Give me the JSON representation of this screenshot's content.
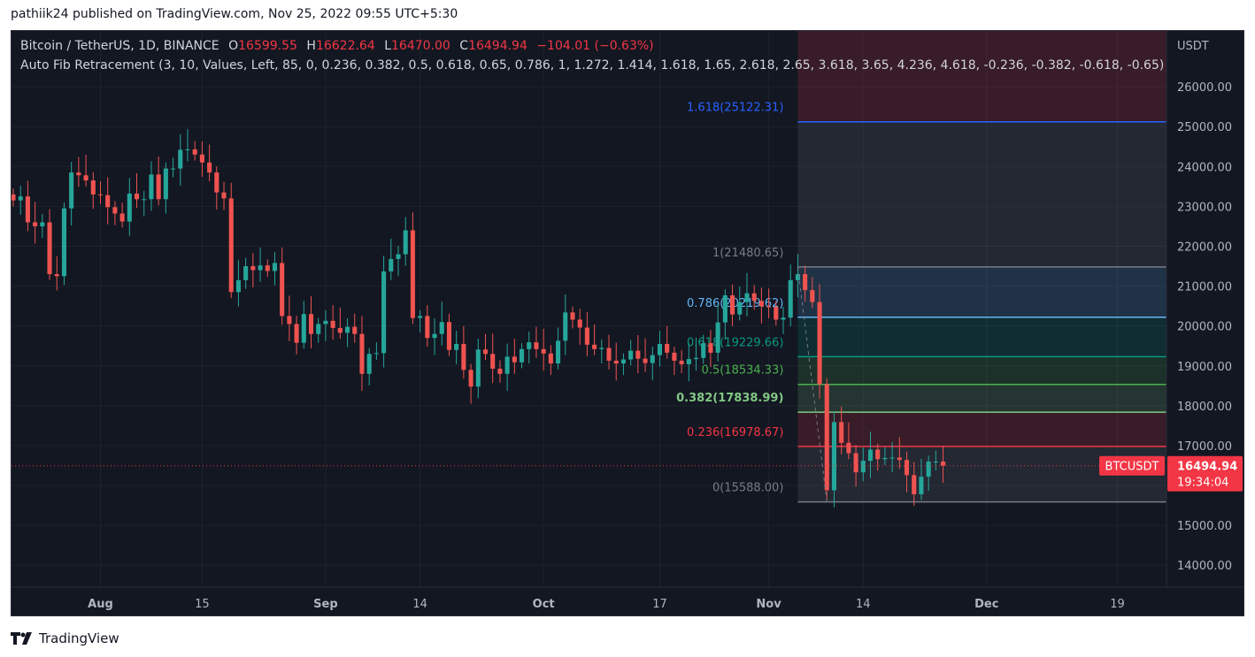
{
  "header": {
    "published_text": "pathiik24 published on TradingView.com, Nov 25, 2022 09:55 UTC+5:30"
  },
  "footer": {
    "brand": "TradingView",
    "logo_icon": "tradingview-logo-icon"
  },
  "legend": {
    "symbol": "Bitcoin / TetherUS, 1D, BINANCE",
    "open_label": "O",
    "open_value": "16599.55",
    "high_label": "H",
    "high_value": "16622.64",
    "low_label": "L",
    "low_value": "16470.00",
    "close_label": "C",
    "close_value": "16494.94",
    "change": "−104.01 (−0.63%)",
    "indicator": "Auto Fib Retracement (3, 10, Values, Left, 85, 0, 0.236, 0.382, 0.5, 0.618, 0.65, 0.786, 1, 1.272, 1.414, 1.618, 1.65, 2.618, 2.65, 3.618, 3.65, 4.236, 4.618, -0.236, -0.382, -0.618, -0.65)"
  },
  "price_scale": {
    "currency": "USDT",
    "ticks": [
      "26000.00",
      "25000.00",
      "24000.00",
      "23000.00",
      "22000.00",
      "21000.00",
      "20000.00",
      "19000.00",
      "18000.00",
      "17000.00",
      "16000.00",
      "15000.00",
      "14000.00"
    ]
  },
  "last_price": {
    "symbol_tag": "BTCUSDT",
    "price": "16494.94",
    "countdown": "19:34:04"
  },
  "colors": {
    "bull": "#26a69a",
    "bear": "#ef5350",
    "background": "#131722",
    "grid": "#1e222d"
  },
  "chart_data": {
    "type": "candlestick",
    "ylim": [
      13450,
      27400
    ],
    "x_ticks": [
      {
        "label": "Aug",
        "date": "2022-08-01"
      },
      {
        "label": "15",
        "date": "2022-08-15"
      },
      {
        "label": "Sep",
        "date": "2022-09-01"
      },
      {
        "label": "14",
        "date": "2022-09-14"
      },
      {
        "label": "Oct",
        "date": "2022-10-01"
      },
      {
        "label": "17",
        "date": "2022-10-17"
      },
      {
        "label": "Nov",
        "date": "2022-11-01"
      },
      {
        "label": "14",
        "date": "2022-11-14"
      },
      {
        "label": "Dec",
        "date": "2022-12-01"
      },
      {
        "label": "19",
        "date": "2022-12-19"
      }
    ],
    "x_range": [
      "2022-07-20",
      "2022-12-26"
    ],
    "closes": [
      [
        "2022-07-20",
        23150
      ],
      [
        "2022-07-21",
        23250
      ],
      [
        "2022-07-22",
        22600
      ],
      [
        "2022-07-23",
        22500
      ],
      [
        "2022-07-24",
        22600
      ],
      [
        "2022-07-25",
        21300
      ],
      [
        "2022-07-26",
        21250
      ],
      [
        "2022-07-27",
        22950
      ],
      [
        "2022-07-28",
        23850
      ],
      [
        "2022-07-29",
        23780
      ],
      [
        "2022-07-30",
        23650
      ],
      [
        "2022-07-31",
        23300
      ],
      [
        "2022-08-01",
        23280
      ],
      [
        "2022-08-02",
        22980
      ],
      [
        "2022-08-03",
        22820
      ],
      [
        "2022-08-04",
        22620
      ],
      [
        "2022-08-05",
        23320
      ],
      [
        "2022-08-06",
        23180
      ],
      [
        "2022-08-07",
        23180
      ],
      [
        "2022-08-08",
        23800
      ],
      [
        "2022-08-09",
        23180
      ],
      [
        "2022-08-10",
        23950
      ],
      [
        "2022-08-11",
        23950
      ],
      [
        "2022-08-12",
        24420
      ],
      [
        "2022-08-13",
        24430
      ],
      [
        "2022-08-14",
        24300
      ],
      [
        "2022-08-15",
        24100
      ],
      [
        "2022-08-16",
        23850
      ],
      [
        "2022-08-17",
        23350
      ],
      [
        "2022-08-18",
        23200
      ],
      [
        "2022-08-19",
        20850
      ],
      [
        "2022-08-20",
        21150
      ],
      [
        "2022-08-21",
        21500
      ],
      [
        "2022-08-22",
        21400
      ],
      [
        "2022-08-23",
        21520
      ],
      [
        "2022-08-24",
        21380
      ],
      [
        "2022-08-25",
        21580
      ],
      [
        "2022-08-26",
        20250
      ],
      [
        "2022-08-27",
        20050
      ],
      [
        "2022-08-28",
        19580
      ],
      [
        "2022-08-29",
        20300
      ],
      [
        "2022-08-30",
        19800
      ],
      [
        "2022-08-31",
        20050
      ],
      [
        "2022-09-01",
        20130
      ],
      [
        "2022-09-02",
        19950
      ],
      [
        "2022-09-03",
        19830
      ],
      [
        "2022-09-04",
        19980
      ],
      [
        "2022-09-05",
        19800
      ],
      [
        "2022-09-06",
        18800
      ],
      [
        "2022-09-07",
        19300
      ],
      [
        "2022-09-08",
        19320
      ],
      [
        "2022-09-09",
        21370
      ],
      [
        "2022-09-10",
        21680
      ],
      [
        "2022-09-11",
        21800
      ],
      [
        "2022-09-12",
        22400
      ],
      [
        "2022-09-13",
        20200
      ],
      [
        "2022-09-14",
        20250
      ],
      [
        "2022-09-15",
        19700
      ],
      [
        "2022-09-16",
        19800
      ],
      [
        "2022-09-17",
        20100
      ],
      [
        "2022-09-18",
        19400
      ],
      [
        "2022-09-19",
        19550
      ],
      [
        "2022-09-20",
        18900
      ],
      [
        "2022-09-21",
        18480
      ],
      [
        "2022-09-22",
        19410
      ],
      [
        "2022-09-23",
        19300
      ],
      [
        "2022-09-24",
        18930
      ],
      [
        "2022-09-25",
        18800
      ],
      [
        "2022-09-26",
        19230
      ],
      [
        "2022-09-27",
        19090
      ],
      [
        "2022-09-28",
        19420
      ],
      [
        "2022-09-29",
        19590
      ],
      [
        "2022-09-30",
        19420
      ],
      [
        "2022-10-01",
        19310
      ],
      [
        "2022-10-02",
        19060
      ],
      [
        "2022-10-03",
        19630
      ],
      [
        "2022-10-04",
        20340
      ],
      [
        "2022-10-05",
        20160
      ],
      [
        "2022-10-06",
        19960
      ],
      [
        "2022-10-07",
        19530
      ],
      [
        "2022-10-08",
        19420
      ],
      [
        "2022-10-09",
        19450
      ],
      [
        "2022-10-10",
        19130
      ],
      [
        "2022-10-11",
        19060
      ],
      [
        "2022-10-12",
        19160
      ],
      [
        "2022-10-13",
        19380
      ],
      [
        "2022-10-14",
        19180
      ],
      [
        "2022-10-15",
        19070
      ],
      [
        "2022-10-16",
        19270
      ],
      [
        "2022-10-17",
        19550
      ],
      [
        "2022-10-18",
        19330
      ],
      [
        "2022-10-19",
        19130
      ],
      [
        "2022-10-20",
        19040
      ],
      [
        "2022-10-21",
        19170
      ],
      [
        "2022-10-22",
        19200
      ],
      [
        "2022-10-23",
        19570
      ],
      [
        "2022-10-24",
        19330
      ],
      [
        "2022-10-25",
        20090
      ],
      [
        "2022-10-26",
        20770
      ],
      [
        "2022-10-27",
        20290
      ],
      [
        "2022-10-28",
        20600
      ],
      [
        "2022-10-29",
        20820
      ],
      [
        "2022-10-30",
        20630
      ],
      [
        "2022-10-31",
        20490
      ],
      [
        "2022-11-01",
        20480
      ],
      [
        "2022-11-02",
        20160
      ],
      [
        "2022-11-03",
        20210
      ],
      [
        "2022-11-04",
        21150
      ],
      [
        "2022-11-05",
        21300
      ],
      [
        "2022-11-06",
        20900
      ],
      [
        "2022-11-07",
        20600
      ],
      [
        "2022-11-08",
        18540
      ],
      [
        "2022-11-09",
        15880
      ],
      [
        "2022-11-10",
        17590
      ],
      [
        "2022-11-11",
        17070
      ],
      [
        "2022-11-12",
        16810
      ],
      [
        "2022-11-13",
        16330
      ],
      [
        "2022-11-14",
        16620
      ],
      [
        "2022-11-15",
        16900
      ],
      [
        "2022-11-16",
        16660
      ],
      [
        "2022-11-17",
        16690
      ],
      [
        "2022-11-18",
        16700
      ],
      [
        "2022-11-19",
        16640
      ],
      [
        "2022-11-20",
        16260
      ],
      [
        "2022-11-21",
        15780
      ],
      [
        "2022-11-22",
        16220
      ],
      [
        "2022-11-23",
        16600
      ],
      [
        "2022-11-24",
        16600
      ],
      [
        "2022-11-25",
        16495
      ]
    ],
    "fib_levels": [
      {
        "label": "1.618(25122.31)",
        "ratio": 1.618,
        "price": 25122.31,
        "color": "#2962ff"
      },
      {
        "label": "1(21480.65)",
        "ratio": 1,
        "price": 21480.65,
        "color": "#787b86"
      },
      {
        "label": "0.786(20219.62)",
        "ratio": 0.786,
        "price": 20219.62,
        "color": "#64b5f6"
      },
      {
        "label": "0.618(19229.66)",
        "ratio": 0.618,
        "price": 19229.66,
        "color": "#089981"
      },
      {
        "label": "0.5(18534.33)",
        "ratio": 0.5,
        "price": 18534.33,
        "color": "#4caf50"
      },
      {
        "label": "0.382(17838.99)",
        "ratio": 0.382,
        "price": 17838.99,
        "color": "#81c784"
      },
      {
        "label": "0.236(16978.67)",
        "ratio": 0.236,
        "price": 16978.67,
        "color": "#f23645"
      },
      {
        "label": "0(15588.00)",
        "ratio": 0,
        "price": 15588,
        "color": "#787b86"
      }
    ],
    "fib_anchor": {
      "start_date": "2022-11-05",
      "end_date": "2022-12-26"
    },
    "fib_label_layout": "left"
  }
}
